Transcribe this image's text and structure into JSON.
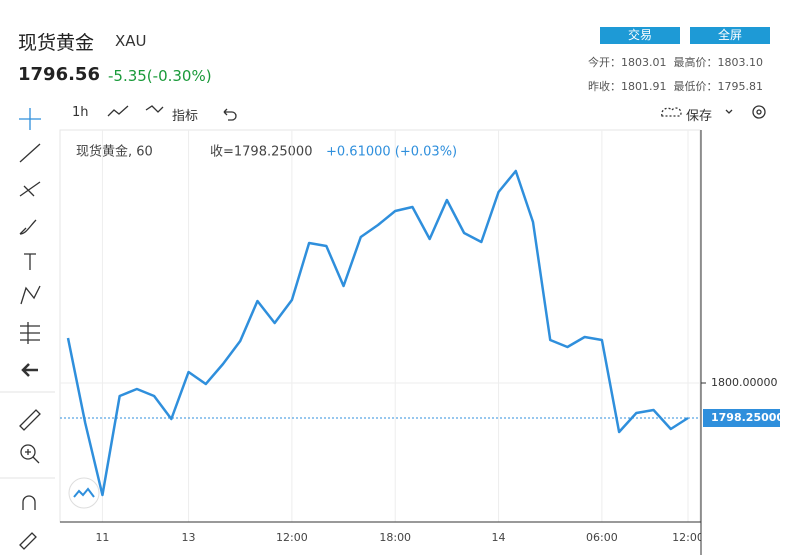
{
  "header": {
    "name": "现货黄金",
    "symbol": "XAU",
    "price": "1796.56",
    "change": "-5.35(-0.30%)",
    "buttons": [
      "交易",
      "全屏"
    ],
    "stats": [
      [
        "今开：",
        "1803.01"
      ],
      [
        "最高价：",
        "1803.10"
      ],
      [
        "昨收：",
        "1801.91"
      ],
      [
        "最低价：",
        "1795.81"
      ]
    ]
  },
  "toolbar": {
    "interval": "1h",
    "indicators": "指标",
    "save": "保存"
  },
  "legend": {
    "name": "现货黄金, 60",
    "close": "收=1798.25000",
    "change": "+0.61000 (+0.03%)"
  },
  "chart_data": {
    "type": "line",
    "color": "#2f8fdc",
    "categories": [
      null,
      null,
      "11",
      null,
      null,
      null,
      null,
      "13",
      null,
      null,
      null,
      null,
      null,
      "12:00",
      null,
      null,
      null,
      null,
      null,
      "18:00",
      null,
      null,
      null,
      null,
      null,
      "14",
      null,
      null,
      null,
      null,
      null,
      "06:00",
      null,
      null,
      null,
      null,
      "12:00"
    ],
    "values": [
      1802.25,
      1798.0,
      1794.4,
      1799.35,
      1799.7,
      1799.35,
      1798.2,
      1800.55,
      1799.95,
      1800.95,
      1802.1,
      1804.1,
      1803.0,
      1804.15,
      1807.0,
      1806.85,
      1804.85,
      1807.3,
      1807.9,
      1808.6,
      1808.8,
      1807.2,
      1809.15,
      1807.5,
      1807.05,
      1809.55,
      1810.6,
      1808.05,
      1802.15,
      1801.8,
      1802.3,
      1802.15,
      1797.55,
      1798.5,
      1798.65,
      1797.7,
      1798.25
    ],
    "ylim": [
      1793.05,
      1812.65
    ],
    "yticks": [
      {
        "value": 1800,
        "label": "1800.00000"
      }
    ],
    "last_price": {
      "value": 1798.25,
      "label": "1798.25000"
    }
  }
}
